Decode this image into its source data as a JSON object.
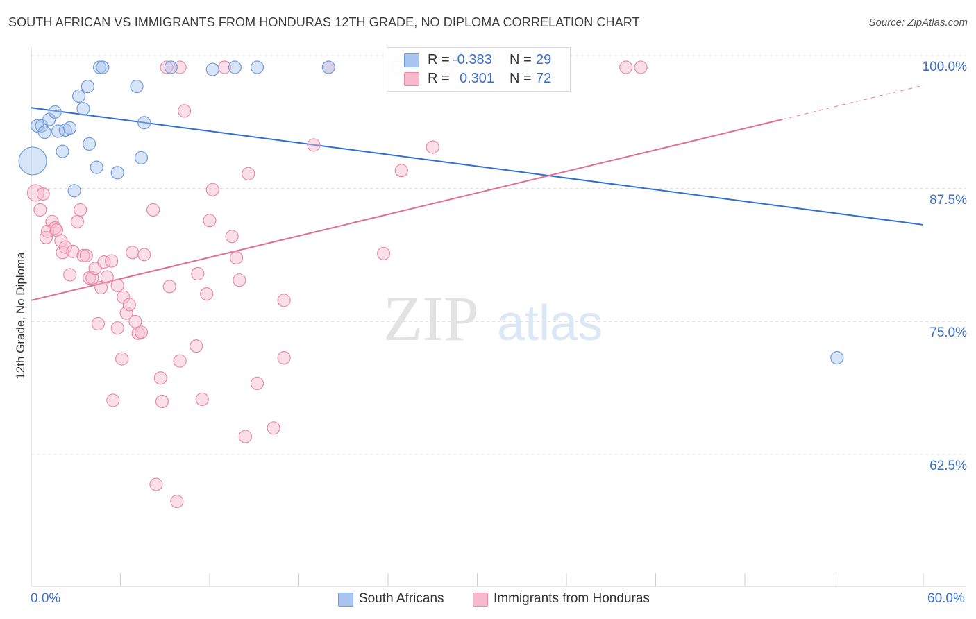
{
  "header": {
    "title": "SOUTH AFRICAN VS IMMIGRANTS FROM HONDURAS 12TH GRADE, NO DIPLOMA CORRELATION CHART",
    "source": "Source: ZipAtlas.com"
  },
  "watermark": {
    "zip": "ZIP",
    "atlas": "atlas"
  },
  "legend": {
    "r_label": "R =",
    "n_label": "N =",
    "rows": [
      {
        "name": "South Africans",
        "r": "-0.383",
        "n": "29",
        "color": "#a9c4ee",
        "stroke": "#6f9bdc"
      },
      {
        "name": "Immigrants from Honduras",
        "r": "0.301",
        "n": "72",
        "color": "#f7b9cc",
        "stroke": "#e98aa8"
      }
    ]
  },
  "chart_data": {
    "type": "scatter",
    "title": "SOUTH AFRICAN VS IMMIGRANTS FROM HONDURAS 12TH GRADE, NO DIPLOMA CORRELATION CHART",
    "xlabel": "",
    "ylabel": "12th Grade, No Diploma",
    "xlim": [
      0,
      60
    ],
    "ylim": [
      51.5,
      101.5
    ],
    "x_tick_labels": [
      "0.0%",
      "60.0%"
    ],
    "y_ticks": [
      100,
      87.5,
      75,
      62.5
    ],
    "y_tick_labels": [
      "100.0%",
      "87.5%",
      "75.0%",
      "62.5%"
    ],
    "grid": "horizontal dashed",
    "series": [
      {
        "name": "South Africans",
        "color": "#6f9bdc",
        "fill": "#a9c4ee",
        "points": [
          [
            0.1,
            91.2
          ],
          [
            0.4,
            94.5
          ],
          [
            0.7,
            94.5
          ],
          [
            0.9,
            93.9
          ],
          [
            1.2,
            95.1
          ],
          [
            1.6,
            95.8
          ],
          [
            1.8,
            94.0
          ],
          [
            2.1,
            92.1
          ],
          [
            2.3,
            94.1
          ],
          [
            2.6,
            94.3
          ],
          [
            2.9,
            88.4
          ],
          [
            3.2,
            97.3
          ],
          [
            3.5,
            96.1
          ],
          [
            3.8,
            98.2
          ],
          [
            3.9,
            92.8
          ],
          [
            4.4,
            90.6
          ],
          [
            4.6,
            100.0
          ],
          [
            4.8,
            100.0
          ],
          [
            5.8,
            90.1
          ],
          [
            7.1,
            98.2
          ],
          [
            7.4,
            91.5
          ],
          [
            7.6,
            94.8
          ],
          [
            9.4,
            100.0
          ],
          [
            12.2,
            99.8
          ],
          [
            13.7,
            100.0
          ],
          [
            15.2,
            100.0
          ],
          [
            20.0,
            100.0
          ],
          [
            33.0,
            100.0
          ],
          [
            54.2,
            72.7
          ]
        ],
        "sizes": [
          20,
          9,
          9,
          9,
          9,
          9,
          9,
          9,
          9,
          9,
          9,
          9,
          9,
          9,
          9,
          9,
          9,
          9,
          9,
          9,
          9,
          9,
          9,
          9,
          9,
          9,
          9,
          9,
          9
        ],
        "trend": {
          "x0": 0,
          "y0": 96.2,
          "x1": 60,
          "y1": 85.2
        }
      },
      {
        "name": "Immigrants from Honduras",
        "color": "#e98aa8",
        "fill": "#f7b9cc",
        "points": [
          [
            0.3,
            88.2
          ],
          [
            0.6,
            86.6
          ],
          [
            0.8,
            88.1
          ],
          [
            1.0,
            84.0
          ],
          [
            1.1,
            84.6
          ],
          [
            1.4,
            85.5
          ],
          [
            1.6,
            84.9
          ],
          [
            1.7,
            84.7
          ],
          [
            2.0,
            83.7
          ],
          [
            2.1,
            82.6
          ],
          [
            2.3,
            83.1
          ],
          [
            2.6,
            80.5
          ],
          [
            2.8,
            82.7
          ],
          [
            3.1,
            85.5
          ],
          [
            3.3,
            86.6
          ],
          [
            3.5,
            82.3
          ],
          [
            3.7,
            82.3
          ],
          [
            3.9,
            80.2
          ],
          [
            4.1,
            80.2
          ],
          [
            4.3,
            81.1
          ],
          [
            4.5,
            75.9
          ],
          [
            4.7,
            79.3
          ],
          [
            4.9,
            81.7
          ],
          [
            5.1,
            80.3
          ],
          [
            5.4,
            81.8
          ],
          [
            5.5,
            68.7
          ],
          [
            5.8,
            75.5
          ],
          [
            5.8,
            79.5
          ],
          [
            6.1,
            72.6
          ],
          [
            6.2,
            78.4
          ],
          [
            6.4,
            76.9
          ],
          [
            6.6,
            77.7
          ],
          [
            6.8,
            82.6
          ],
          [
            7.0,
            76.1
          ],
          [
            7.2,
            75.0
          ],
          [
            7.4,
            75.1
          ],
          [
            7.6,
            82.4
          ],
          [
            8.2,
            86.6
          ],
          [
            8.4,
            60.8
          ],
          [
            8.7,
            70.8
          ],
          [
            8.8,
            68.6
          ],
          [
            9.3,
            79.4
          ],
          [
            10.0,
            72.4
          ],
          [
            10.3,
            95.9
          ],
          [
            11.1,
            73.8
          ],
          [
            11.2,
            80.6
          ],
          [
            11.5,
            68.8
          ],
          [
            11.8,
            78.7
          ],
          [
            12.0,
            85.6
          ],
          [
            12.2,
            88.5
          ],
          [
            13.5,
            84.1
          ],
          [
            13.8,
            82.1
          ],
          [
            14.0,
            80.0
          ],
          [
            14.4,
            65.3
          ],
          [
            14.6,
            90.0
          ],
          [
            15.2,
            70.3
          ],
          [
            16.3,
            66.1
          ],
          [
            17.0,
            78.1
          ],
          [
            17.0,
            72.7
          ],
          [
            19.0,
            92.7
          ],
          [
            20.0,
            100.0
          ],
          [
            23.7,
            82.5
          ],
          [
            24.7,
            100.0
          ],
          [
            24.9,
            90.3
          ],
          [
            27.0,
            92.5
          ],
          [
            28.0,
            100.0
          ],
          [
            40.0,
            100.0
          ],
          [
            41.0,
            100.0
          ],
          [
            10.0,
            100.0
          ],
          [
            9.1,
            100.0
          ],
          [
            13.0,
            100.0
          ],
          [
            9.8,
            59.2
          ]
        ],
        "sizes": [
          12,
          9,
          9,
          9,
          9,
          9,
          9,
          9,
          9,
          9,
          9,
          9,
          9,
          9,
          9,
          9,
          9,
          9,
          9,
          9,
          9,
          9,
          9,
          9,
          9,
          9,
          9,
          9,
          9,
          9,
          9,
          9,
          9,
          9,
          9,
          9,
          9,
          9,
          9,
          9,
          9,
          9,
          9,
          9,
          9,
          9,
          9,
          9,
          9,
          9,
          9,
          9,
          9,
          9,
          9,
          9,
          9,
          9,
          9,
          9,
          9,
          9,
          9,
          9,
          9,
          9,
          9,
          9,
          9,
          9,
          9,
          9
        ],
        "trend": {
          "x0": 0,
          "y0": 78.1,
          "x1": 50.5,
          "y1": 95.1
        },
        "trend_dashed": {
          "x0": 50.5,
          "y0": 95.1,
          "x1": 60,
          "y1": 98.3
        }
      }
    ]
  }
}
